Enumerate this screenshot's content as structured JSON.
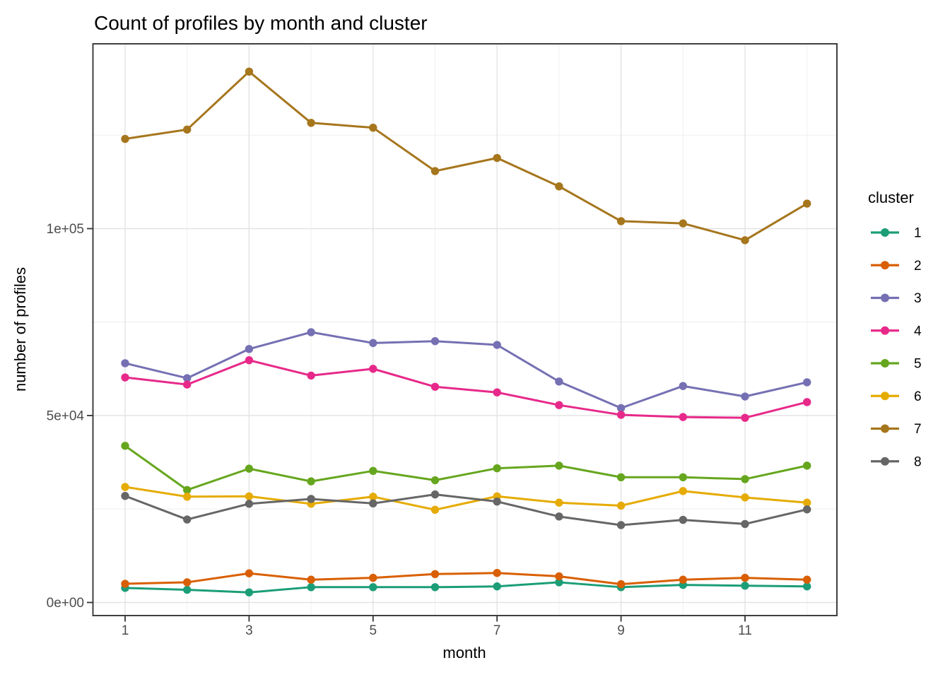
{
  "chart_data": {
    "type": "line",
    "title": "Count of profiles by month and cluster",
    "xlabel": "month",
    "ylabel": "number of profiles",
    "legend_title": "cluster",
    "legend_position": "right",
    "grid": true,
    "x": [
      1,
      2,
      3,
      4,
      5,
      6,
      7,
      8,
      9,
      10,
      11,
      12
    ],
    "x_ticks": {
      "major": [
        1,
        3,
        5,
        7,
        9,
        11
      ],
      "minor": [
        2,
        4,
        6,
        8,
        10,
        12
      ],
      "labels": [
        "1",
        "3",
        "5",
        "7",
        "9",
        "11"
      ]
    },
    "y_ticks": {
      "major": [
        0,
        50000,
        100000
      ],
      "minor": [
        25000,
        75000,
        125000
      ],
      "labels": [
        "0e+00",
        "5e+04",
        "1e+05"
      ]
    },
    "xlim": [
      0.45,
      12.55
    ],
    "ylim": [
      -3500,
      149500
    ],
    "series": [
      {
        "name": "1",
        "color": "#1B9E77",
        "values": [
          3900,
          3400,
          2700,
          4100,
          4100,
          4100,
          4300,
          5400,
          4100,
          4700,
          4500,
          4300
        ]
      },
      {
        "name": "2",
        "color": "#D95F02",
        "values": [
          5000,
          5400,
          7800,
          6100,
          6600,
          7600,
          7900,
          7000,
          4900,
          6100,
          6600,
          6100
        ]
      },
      {
        "name": "3",
        "color": "#7570B3",
        "values": [
          64000,
          60000,
          67800,
          72300,
          69400,
          69900,
          68900,
          59100,
          52000,
          57900,
          55100,
          58900
        ]
      },
      {
        "name": "4",
        "color": "#E7298A",
        "values": [
          60200,
          58300,
          64800,
          60700,
          62500,
          57700,
          56200,
          52800,
          50200,
          49600,
          49400,
          53600
        ]
      },
      {
        "name": "5",
        "color": "#66A61E",
        "values": [
          41900,
          30100,
          35800,
          32400,
          35200,
          32700,
          35900,
          36600,
          33500,
          33500,
          33000,
          36600
        ]
      },
      {
        "name": "6",
        "color": "#E6AB02",
        "values": [
          30900,
          28300,
          28400,
          26400,
          28300,
          24800,
          28400,
          26700,
          25900,
          29800,
          28100,
          26700
        ]
      },
      {
        "name": "7",
        "color": "#A6761D",
        "values": [
          124000,
          126500,
          142000,
          128300,
          127000,
          115400,
          118900,
          111300,
          102000,
          101400,
          96900,
          106700
        ]
      },
      {
        "name": "8",
        "color": "#666666",
        "values": [
          28500,
          22200,
          26400,
          27700,
          26500,
          28900,
          27000,
          23000,
          20700,
          22100,
          21000,
          24900
        ]
      }
    ],
    "style": {
      "panel_border": "#404040",
      "grid_major": "#e3e3e3",
      "grid_minor": "#efefef",
      "tick_color": "#333333",
      "axis_text_color": "#4d4d4d"
    }
  }
}
